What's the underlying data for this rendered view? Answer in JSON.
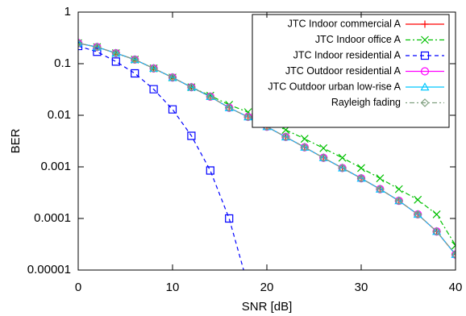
{
  "chart_data": {
    "type": "line",
    "xlabel": "SNR [dB]",
    "ylabel": "BER",
    "x": [
      0,
      2,
      4,
      6,
      8,
      10,
      12,
      14,
      16,
      18,
      20,
      22,
      24,
      26,
      28,
      30,
      32,
      34,
      36,
      38,
      40
    ],
    "xlim": [
      0,
      40
    ],
    "xticks": [
      0,
      10,
      20,
      30,
      40
    ],
    "ylim": [
      1e-05,
      1
    ],
    "yticks": [
      1,
      0.1,
      0.01,
      0.001,
      0.0001,
      1e-05
    ],
    "yscale": "log",
    "legend": "upper right",
    "series": [
      {
        "name": "JTC Indoor commercial A",
        "color": "#ff0000",
        "marker": "plus",
        "dash": "solid",
        "values": [
          0.25,
          0.21,
          0.16,
          0.12,
          0.081,
          0.054,
          0.035,
          0.023,
          0.014,
          0.0093,
          0.006,
          0.0038,
          0.0024,
          0.0015,
          0.00095,
          0.0006,
          0.00037,
          0.00022,
          0.00012,
          5.6e-05,
          2e-05
        ]
      },
      {
        "name": "JTC Indoor office A",
        "color": "#00c000",
        "marker": "cross",
        "dash": "dashdot",
        "values": [
          0.25,
          0.21,
          0.16,
          0.12,
          0.081,
          0.054,
          0.035,
          0.024,
          0.016,
          0.0115,
          0.0078,
          0.0052,
          0.0035,
          0.0023,
          0.0015,
          0.00095,
          0.0006,
          0.00037,
          0.00023,
          0.00012,
          3e-05
        ]
      },
      {
        "name": "JTC Indoor residential A",
        "color": "#0000ff",
        "marker": "square",
        "dash": "dashed",
        "values": [
          0.22,
          0.17,
          0.11,
          0.065,
          0.032,
          0.013,
          0.004,
          0.00085,
          0.0001,
          5e-06,
          null,
          null,
          null,
          null,
          null,
          null,
          null,
          null,
          null,
          null,
          null
        ]
      },
      {
        "name": "JTC Outdoor residential A",
        "color": "#ff00ff",
        "marker": "circle",
        "dash": "solid",
        "values": [
          0.25,
          0.21,
          0.16,
          0.12,
          0.081,
          0.054,
          0.035,
          0.023,
          0.014,
          0.0093,
          0.006,
          0.0038,
          0.0024,
          0.0015,
          0.00095,
          0.0006,
          0.00037,
          0.00022,
          0.00012,
          5.6e-05,
          2e-05
        ]
      },
      {
        "name": "JTC Outdoor urban low-rise A",
        "color": "#00c8ff",
        "marker": "triangle",
        "dash": "solid",
        "values": [
          0.25,
          0.21,
          0.16,
          0.12,
          0.081,
          0.054,
          0.035,
          0.023,
          0.014,
          0.0093,
          0.006,
          0.0038,
          0.0024,
          0.0015,
          0.00095,
          0.0006,
          0.00037,
          0.00022,
          0.00012,
          5.6e-05,
          2e-05
        ]
      },
      {
        "name": "Rayleigh fading",
        "color": "#80a080",
        "marker": "diamond",
        "dash": "dotdash",
        "values": [
          0.25,
          0.21,
          0.16,
          0.12,
          0.081,
          0.054,
          0.035,
          0.023,
          0.014,
          0.0093,
          0.006,
          0.0038,
          0.0024,
          0.0015,
          0.00095,
          0.0006,
          0.00037,
          0.00022,
          0.00012,
          5.6e-05,
          2e-05
        ]
      }
    ]
  }
}
